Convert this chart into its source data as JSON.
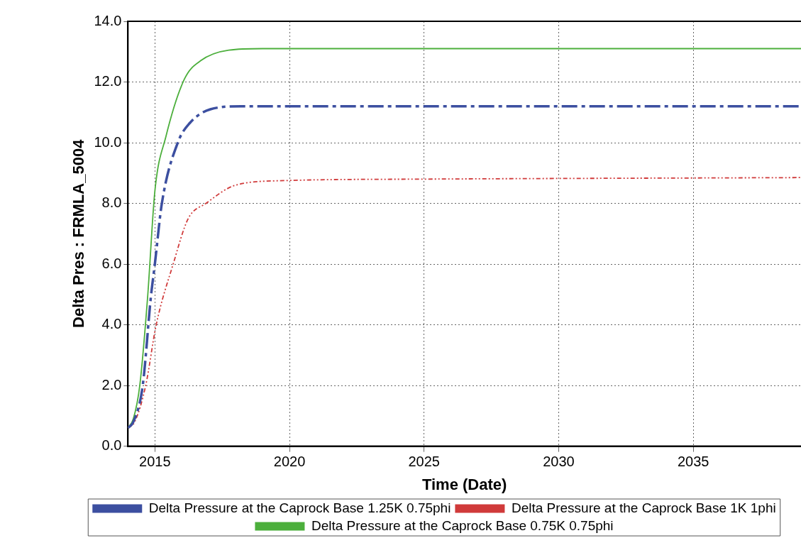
{
  "chart_data": {
    "type": "line",
    "xlabel": "Time (Date)",
    "ylabel": "Delta Pres : FRMLA_5004",
    "xlim": [
      2014,
      2039
    ],
    "xticks": [
      2015,
      2020,
      2025,
      2030,
      2035
    ],
    "ylim": [
      0,
      14
    ],
    "yticks": [
      {
        "value": 0,
        "label": "0.0"
      },
      {
        "value": 2,
        "label": "2.0"
      },
      {
        "value": 4,
        "label": "4.0"
      },
      {
        "value": 6,
        "label": "6.0"
      },
      {
        "value": 8,
        "label": "8.0"
      },
      {
        "value": 10,
        "label": "10.0"
      },
      {
        "value": 12,
        "label": "12.0"
      },
      {
        "value": 14,
        "label": "14.0"
      }
    ],
    "grid": true,
    "legend": "bottom",
    "marker": "none",
    "series": [
      {
        "name": "Delta Pressure at the Caprock Base 1.25K 0.75phi",
        "color": "#3c4fa0",
        "line_style": "dashed",
        "x": [
          2014.0,
          2014.2,
          2014.55,
          2014.85,
          2015.0,
          2015.26,
          2015.85,
          2016.3,
          2017.06,
          2018.2,
          2020,
          2039
        ],
        "values": [
          0.6,
          0.8,
          2.0,
          4.9,
          6.0,
          8.0,
          10.0,
          10.65,
          11.1,
          11.2,
          11.2,
          11.2
        ]
      },
      {
        "name": "Delta Pressure at the Caprock Base 1K 1phi",
        "color": "#d03a3a",
        "line_style": "dotted",
        "x": [
          2014.0,
          2014.25,
          2014.66,
          2015.05,
          2015.68,
          2016.24,
          2016.9,
          2018.0,
          2019.8,
          2025,
          2039
        ],
        "values": [
          0.6,
          0.8,
          2.0,
          4.0,
          6.0,
          7.5,
          8.0,
          8.6,
          8.75,
          8.8,
          8.85
        ]
      },
      {
        "name": "Delta Pressure at the Caprock Base 0.75K 0.75phi",
        "color": "#4caf3c",
        "line_style": "solid",
        "x": [
          2014.0,
          2014.2,
          2014.44,
          2014.73,
          2015.0,
          2015.41,
          2016.1,
          2016.7,
          2017.75,
          2019,
          2039
        ],
        "values": [
          0.6,
          0.9,
          2.0,
          4.9,
          8.4,
          10.2,
          12.1,
          12.7,
          13.05,
          13.1,
          13.1
        ]
      }
    ]
  }
}
